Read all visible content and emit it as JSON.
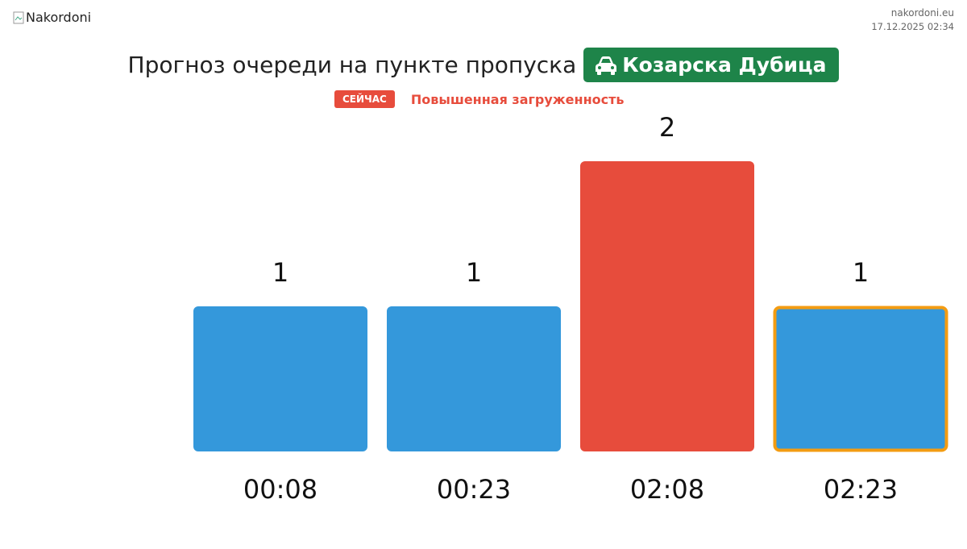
{
  "header": {
    "logo_alt": "Nakordoni",
    "site": "nakordoni.eu",
    "datetime": "17.12.2025 02:34"
  },
  "title": "Прогноз очереди на пункте пропуска",
  "checkpoint": "Козарска Дубица",
  "status": {
    "badge": "СЕЙЧАС",
    "text": "Повышенная загруженность"
  },
  "chart_data": {
    "type": "bar",
    "categories": [
      "00:08",
      "00:23",
      "02:08",
      "02:23"
    ],
    "values": [
      1,
      1,
      2,
      1
    ],
    "colors": [
      "#3498db",
      "#3498db",
      "#e74c3c",
      "#3498db"
    ],
    "highlight": {
      "index": 3,
      "color": "#f39c12"
    }
  }
}
